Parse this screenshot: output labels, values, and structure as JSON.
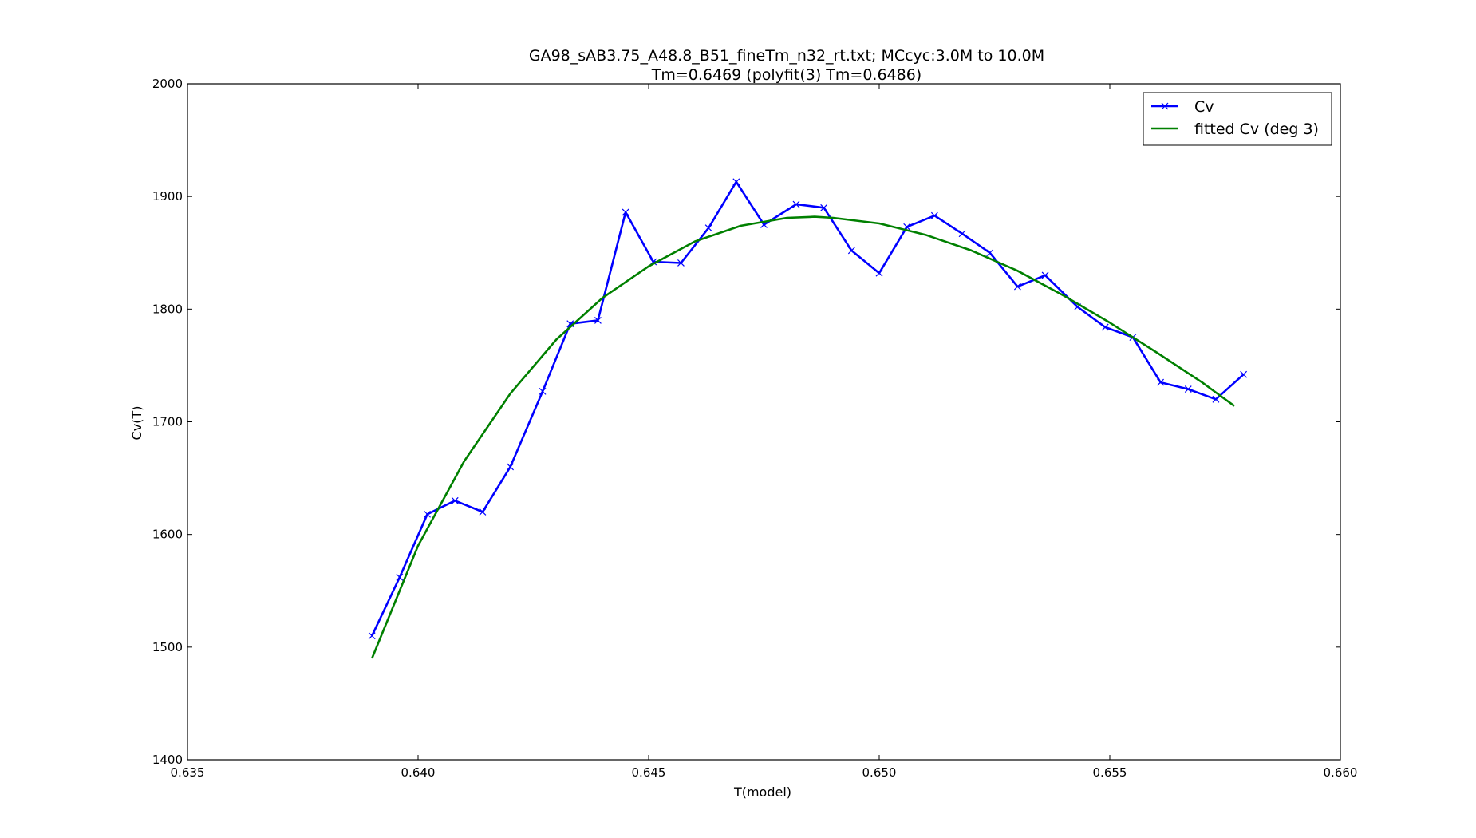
{
  "chart_data": {
    "type": "line",
    "title": "GA98_sAB3.75_A48.8_B51_fineTm_n32_rt.txt; MCcyc:3.0M to 10.0M",
    "subtitle": "Tm=0.6469 (polyfit(3) Tm=0.6486)",
    "xlabel": "T(model)",
    "ylabel": "Cv(T)",
    "xlim": [
      0.635,
      0.66
    ],
    "ylim": [
      1400,
      2000
    ],
    "xticks": [
      0.635,
      0.64,
      0.645,
      0.65,
      0.655,
      0.66
    ],
    "xtick_labels": [
      "0.635",
      "0.640",
      "0.645",
      "0.650",
      "0.655",
      "0.660"
    ],
    "yticks": [
      1400,
      1500,
      1600,
      1700,
      1800,
      1900,
      2000
    ],
    "ytick_labels": [
      "1400",
      "1500",
      "1600",
      "1700",
      "1800",
      "1900",
      "2000"
    ],
    "grid": false,
    "legend_position": "top-right",
    "series": [
      {
        "name": "Cv",
        "color": "#0000ff",
        "marker": "x",
        "x": [
          0.639,
          0.6396,
          0.6402,
          0.6408,
          0.6414,
          0.642,
          0.6427,
          0.6433,
          0.6439,
          0.6445,
          0.6451,
          0.6457,
          0.6463,
          0.6469,
          0.6475,
          0.6482,
          0.6488,
          0.6494,
          0.65,
          0.6506,
          0.6512,
          0.6518,
          0.6524,
          0.653,
          0.6536,
          0.6543,
          0.6549,
          0.6555,
          0.6561,
          0.6567,
          0.6573,
          0.6579
        ],
        "y": [
          1510,
          1562,
          1618,
          1630,
          1620,
          1660,
          1727,
          1787,
          1790,
          1886,
          1842,
          1841,
          1872,
          1913,
          1875,
          1893,
          1890,
          1852,
          1832,
          1873,
          1883,
          1867,
          1850,
          1820,
          1830,
          1802,
          1784,
          1775,
          1735,
          1729,
          1720,
          1742
        ]
      },
      {
        "name": "fitted Cv (deg 3)",
        "color": "#008000",
        "marker": "none",
        "x": [
          0.639,
          0.64,
          0.641,
          0.642,
          0.643,
          0.644,
          0.645,
          0.646,
          0.647,
          0.648,
          0.6486,
          0.649,
          0.65,
          0.651,
          0.652,
          0.653,
          0.654,
          0.655,
          0.656,
          0.657,
          0.6577
        ],
        "y": [
          1490,
          1590,
          1665,
          1725,
          1773,
          1810,
          1838,
          1860,
          1874,
          1881,
          1882,
          1881,
          1876,
          1866,
          1852,
          1834,
          1812,
          1788,
          1762,
          1735,
          1714
        ]
      }
    ]
  }
}
